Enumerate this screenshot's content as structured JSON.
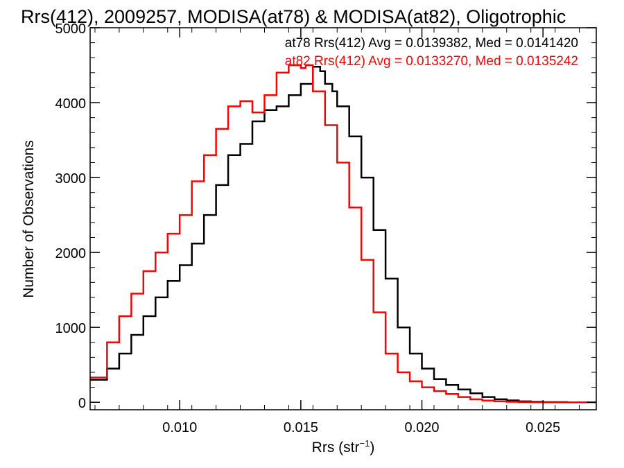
{
  "chart_data": {
    "type": "line",
    "title": "Rrs(412), 2009257, MODISA(at78) & MODISA(at82), Oligotrophic",
    "xlabel": "Rrs (str",
    "xlabel_sup": "−1",
    "xlabel_end": ")",
    "ylabel": "Number of Observations",
    "xlim": [
      0.0063,
      0.0272
    ],
    "ylim": [
      -100,
      5000
    ],
    "xticks": [
      0.01,
      0.015,
      0.02,
      0.025
    ],
    "xtick_labels": [
      "0.010",
      "0.015",
      "0.020",
      "0.025"
    ],
    "yticks": [
      0,
      1000,
      2000,
      3000,
      4000,
      5000
    ],
    "ytick_labels": [
      "0",
      "1000",
      "2000",
      "3000",
      "4000",
      "5000"
    ],
    "step": "histogram",
    "series": [
      {
        "name": "at78",
        "color": "#000000",
        "label": "at78 Rrs(412) Avg = 0.0139382, Med = 0.0141420",
        "x": [
          0.0063,
          0.007,
          0.0075,
          0.008,
          0.0085,
          0.009,
          0.0095,
          0.01,
          0.0105,
          0.011,
          0.0115,
          0.012,
          0.0125,
          0.013,
          0.0135,
          0.014,
          0.0145,
          0.015,
          0.0155,
          0.0158,
          0.016,
          0.0163,
          0.0165,
          0.017,
          0.0175,
          0.018,
          0.0185,
          0.019,
          0.0195,
          0.02,
          0.0205,
          0.021,
          0.0215,
          0.022,
          0.0225,
          0.023,
          0.0235,
          0.024,
          0.0245,
          0.025,
          0.026,
          0.0272
        ],
        "y": [
          300,
          450,
          650,
          900,
          1150,
          1400,
          1620,
          1830,
          2120,
          2500,
          2900,
          3300,
          3450,
          3750,
          3900,
          3950,
          4100,
          4250,
          4480,
          4420,
          4250,
          4150,
          3950,
          3550,
          3000,
          2300,
          1650,
          1000,
          650,
          450,
          310,
          230,
          170,
          120,
          70,
          40,
          25,
          12,
          6,
          3,
          0,
          0
        ]
      },
      {
        "name": "at82",
        "color": "#ff0000",
        "label": "at82 Rrs(412) Avg = 0.0133270, Med = 0.0135242",
        "x": [
          0.0063,
          0.007,
          0.0075,
          0.008,
          0.0085,
          0.009,
          0.0095,
          0.01,
          0.0105,
          0.011,
          0.0115,
          0.012,
          0.0125,
          0.013,
          0.0135,
          0.014,
          0.0145,
          0.015,
          0.0152,
          0.0155,
          0.016,
          0.0165,
          0.017,
          0.0175,
          0.018,
          0.0185,
          0.019,
          0.0195,
          0.02,
          0.0205,
          0.021,
          0.0215,
          0.022,
          0.0225,
          0.023,
          0.0235,
          0.024,
          0.0245,
          0.025,
          0.026,
          0.0272
        ],
        "y": [
          330,
          800,
          1150,
          1450,
          1750,
          2000,
          2250,
          2500,
          2950,
          3300,
          3650,
          3950,
          4020,
          3870,
          4100,
          4400,
          4500,
          4460,
          4500,
          4150,
          3700,
          3200,
          2600,
          1900,
          1200,
          650,
          400,
          280,
          200,
          150,
          110,
          70,
          40,
          22,
          12,
          6,
          3,
          1,
          0,
          0,
          0
        ]
      }
    ],
    "grid": false,
    "legend": "top-right"
  }
}
